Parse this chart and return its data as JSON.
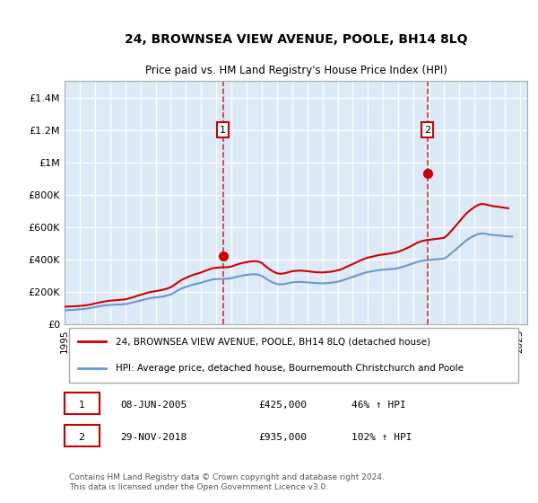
{
  "title": "24, BROWNSEA VIEW AVENUE, POOLE, BH14 8LQ",
  "subtitle": "Price paid vs. HM Land Registry's House Price Index (HPI)",
  "ylabel_ticks": [
    "£0",
    "£200K",
    "£400K",
    "£600K",
    "£800K",
    "£1M",
    "£1.2M",
    "£1.4M"
  ],
  "ylabel_values": [
    0,
    200000,
    400000,
    600000,
    800000,
    1000000,
    1200000,
    1400000
  ],
  "ylim": [
    0,
    1500000
  ],
  "xlim_start": 1995.0,
  "xlim_end": 2025.5,
  "background_color": "#dce9f7",
  "plot_bg_color": "#dce9f7",
  "grid_color": "#ffffff",
  "red_line_color": "#cc0000",
  "blue_line_color": "#6699cc",
  "sale1_x": 2005.44,
  "sale1_y": 425000,
  "sale2_x": 2018.91,
  "sale2_y": 935000,
  "legend_line1": "24, BROWNSEA VIEW AVENUE, POOLE, BH14 8LQ (detached house)",
  "legend_line2": "HPI: Average price, detached house, Bournemouth Christchurch and Poole",
  "annotation1_label": "1",
  "annotation2_label": "2",
  "table_row1": [
    "1",
    "08-JUN-2005",
    "£425,000",
    "46% ↑ HPI"
  ],
  "table_row2": [
    "2",
    "29-NOV-2018",
    "£935,000",
    "102% ↑ HPI"
  ],
  "footer": "Contains HM Land Registry data © Crown copyright and database right 2024.\nThis data is licensed under the Open Government Licence v3.0.",
  "hpi_years": [
    1995,
    1995.25,
    1995.5,
    1995.75,
    1996,
    1996.25,
    1996.5,
    1996.75,
    1997,
    1997.25,
    1997.5,
    1997.75,
    1998,
    1998.25,
    1998.5,
    1998.75,
    1999,
    1999.25,
    1999.5,
    1999.75,
    2000,
    2000.25,
    2000.5,
    2000.75,
    2001,
    2001.25,
    2001.5,
    2001.75,
    2002,
    2002.25,
    2002.5,
    2002.75,
    2003,
    2003.25,
    2003.5,
    2003.75,
    2004,
    2004.25,
    2004.5,
    2004.75,
    2005,
    2005.25,
    2005.5,
    2005.75,
    2006,
    2006.25,
    2006.5,
    2006.75,
    2007,
    2007.25,
    2007.5,
    2007.75,
    2008,
    2008.25,
    2008.5,
    2008.75,
    2009,
    2009.25,
    2009.5,
    2009.75,
    2010,
    2010.25,
    2010.5,
    2010.75,
    2011,
    2011.25,
    2011.5,
    2011.75,
    2012,
    2012.25,
    2012.5,
    2012.75,
    2013,
    2013.25,
    2013.5,
    2013.75,
    2014,
    2014.25,
    2014.5,
    2014.75,
    2015,
    2015.25,
    2015.5,
    2015.75,
    2016,
    2016.25,
    2016.5,
    2016.75,
    2017,
    2017.25,
    2017.5,
    2017.75,
    2018,
    2018.25,
    2018.5,
    2018.75,
    2019,
    2019.25,
    2019.5,
    2019.75,
    2020,
    2020.25,
    2020.5,
    2020.75,
    2021,
    2021.25,
    2021.5,
    2021.75,
    2022,
    2022.25,
    2022.5,
    2022.75,
    2023,
    2023.25,
    2023.5,
    2023.75,
    2024,
    2024.25,
    2024.5
  ],
  "hpi_values": [
    88000,
    89000,
    90500,
    92000,
    94000,
    96000,
    99000,
    103000,
    108000,
    112000,
    116000,
    119000,
    121000,
    122000,
    123000,
    124000,
    126000,
    130000,
    136000,
    142000,
    148000,
    154000,
    160000,
    164000,
    167000,
    170000,
    173000,
    178000,
    185000,
    198000,
    212000,
    224000,
    232000,
    240000,
    247000,
    252000,
    258000,
    265000,
    272000,
    278000,
    280000,
    281000,
    282000,
    283000,
    286000,
    292000,
    298000,
    302000,
    306000,
    309000,
    310000,
    308000,
    300000,
    285000,
    270000,
    258000,
    250000,
    248000,
    250000,
    255000,
    260000,
    262000,
    263000,
    262000,
    260000,
    258000,
    256000,
    255000,
    254000,
    255000,
    257000,
    260000,
    264000,
    270000,
    278000,
    286000,
    294000,
    302000,
    310000,
    318000,
    324000,
    328000,
    332000,
    336000,
    338000,
    340000,
    342000,
    344000,
    348000,
    355000,
    362000,
    370000,
    378000,
    386000,
    392000,
    396000,
    398000,
    400000,
    402000,
    404000,
    406000,
    420000,
    440000,
    460000,
    480000,
    500000,
    520000,
    535000,
    548000,
    558000,
    562000,
    560000,
    555000,
    552000,
    550000,
    548000,
    545000,
    543000,
    542000
  ],
  "red_years": [
    1995,
    1995.25,
    1995.5,
    1995.75,
    1996,
    1996.25,
    1996.5,
    1996.75,
    1997,
    1997.25,
    1997.5,
    1997.75,
    1998,
    1998.25,
    1998.5,
    1998.75,
    1999,
    1999.25,
    1999.5,
    1999.75,
    2000,
    2000.25,
    2000.5,
    2000.75,
    2001,
    2001.25,
    2001.5,
    2001.75,
    2002,
    2002.25,
    2002.5,
    2002.75,
    2003,
    2003.25,
    2003.5,
    2003.75,
    2004,
    2004.25,
    2004.5,
    2004.75,
    2005,
    2005.25,
    2005.5,
    2005.75,
    2006,
    2006.25,
    2006.5,
    2006.75,
    2007,
    2007.25,
    2007.5,
    2007.75,
    2008,
    2008.25,
    2008.5,
    2008.75,
    2009,
    2009.25,
    2009.5,
    2009.75,
    2010,
    2010.25,
    2010.5,
    2010.75,
    2011,
    2011.25,
    2011.5,
    2011.75,
    2012,
    2012.25,
    2012.5,
    2012.75,
    2013,
    2013.25,
    2013.5,
    2013.75,
    2014,
    2014.25,
    2014.5,
    2014.75,
    2015,
    2015.25,
    2015.5,
    2015.75,
    2016,
    2016.25,
    2016.5,
    2016.75,
    2017,
    2017.25,
    2017.5,
    2017.75,
    2018,
    2018.25,
    2018.5,
    2018.75,
    2019,
    2019.25,
    2019.5,
    2019.75,
    2020,
    2020.25,
    2020.5,
    2020.75,
    2021,
    2021.25,
    2021.5,
    2021.75,
    2022,
    2022.25,
    2022.5,
    2022.75,
    2023,
    2023.25,
    2023.5,
    2023.75,
    2024,
    2024.25
  ],
  "red_values": [
    110000,
    111000,
    112000,
    113000,
    115000,
    117000,
    120000,
    124000,
    130000,
    135000,
    140000,
    144000,
    147000,
    149000,
    151000,
    153000,
    155000,
    161000,
    168000,
    176000,
    183000,
    190000,
    197000,
    202000,
    206000,
    210000,
    215000,
    221000,
    230000,
    245000,
    262000,
    277000,
    288000,
    298000,
    307000,
    314000,
    321000,
    330000,
    339000,
    347000,
    350000,
    352000,
    353000,
    354000,
    358000,
    366000,
    374000,
    380000,
    385000,
    389000,
    391000,
    389000,
    380000,
    360000,
    342000,
    327000,
    316000,
    313000,
    316000,
    322000,
    329000,
    331000,
    333000,
    331000,
    329000,
    326000,
    323000,
    322000,
    321000,
    323000,
    325000,
    329000,
    334000,
    341000,
    352000,
    363000,
    373000,
    384000,
    395000,
    405000,
    413000,
    418000,
    424000,
    429000,
    432000,
    435000,
    439000,
    443000,
    449000,
    458000,
    468000,
    479000,
    492000,
    504000,
    513000,
    519000,
    522000,
    525000,
    528000,
    531000,
    534000,
    552000,
    578000,
    605000,
    632000,
    660000,
    686000,
    706000,
    723000,
    737000,
    744000,
    741000,
    735000,
    730000,
    727000,
    724000,
    720000,
    717000
  ]
}
